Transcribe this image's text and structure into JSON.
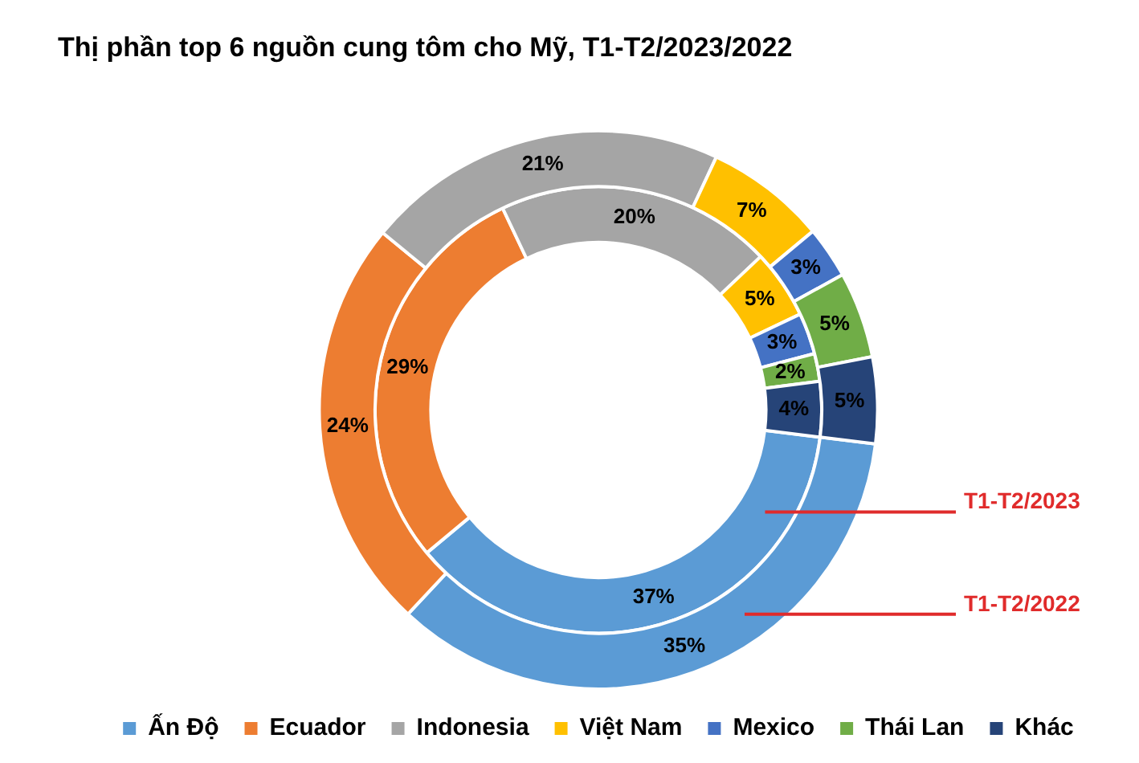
{
  "chart_data": {
    "type": "donut",
    "title": "Thị phần top 6 nguồn cung tôm cho Mỹ, T1-T2/2023/2022",
    "categories": [
      "Ấn Độ",
      "Ecuador",
      "Indonesia",
      "Việt Nam",
      "Mexico",
      "Thái Lan",
      "Khác"
    ],
    "colors": [
      "#5b9bd5",
      "#ed7d31",
      "#a5a5a5",
      "#ffc000",
      "#4472c4",
      "#70ad47",
      "#264478"
    ],
    "series": [
      {
        "name": "T1-T2/2022",
        "values": [
          35,
          24,
          21,
          7,
          3,
          5,
          5
        ],
        "value_labels": [
          "35%",
          "24%",
          "21%",
          "7%",
          "3%",
          "5%",
          "5%"
        ]
      },
      {
        "name": "T1-T2/2023",
        "values": [
          37,
          29,
          20,
          5,
          3,
          2,
          4
        ],
        "value_labels": [
          "37%",
          "29%",
          "20%",
          "5%",
          "3%",
          "2%",
          "4%"
        ]
      }
    ],
    "legend": "bottom"
  }
}
